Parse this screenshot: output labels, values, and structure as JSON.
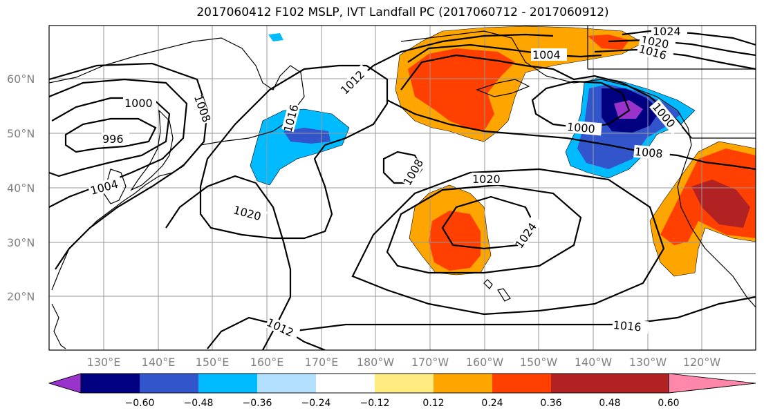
{
  "title": "2017060412 F102 MSLP, IVT Landfall PC (2017060712 - 2017060912)",
  "map": {
    "lat_labels": [
      "60°N",
      "50°N",
      "40°N",
      "30°N",
      "20°N"
    ],
    "lon_labels": [
      "130°E",
      "140°E",
      "150°E",
      "160°E",
      "170°E",
      "180°W",
      "170°W",
      "160°W",
      "150°W",
      "140°W",
      "130°W",
      "120°W"
    ],
    "contour_labels": [
      "1000",
      "996",
      "1008",
      "1004",
      "1016",
      "1012",
      "1020",
      "1008",
      "1020",
      "1024",
      "1012",
      "1016",
      "1004",
      "1000",
      "1008",
      "1024",
      "1020",
      "1016",
      "1000"
    ]
  },
  "colorbar": {
    "colors": [
      "#9933cc",
      "#000080",
      "#3355cc",
      "#00bbff",
      "#b3e0ff",
      "#ffffff",
      "#ffeb80",
      "#ffa500",
      "#ff4000",
      "#b22222",
      "#ff88aa"
    ],
    "tick_labels": [
      "−0.60",
      "−0.48",
      "−0.36",
      "−0.24",
      "−0.12",
      "0.12",
      "0.24",
      "0.36",
      "0.48",
      "0.60"
    ]
  }
}
